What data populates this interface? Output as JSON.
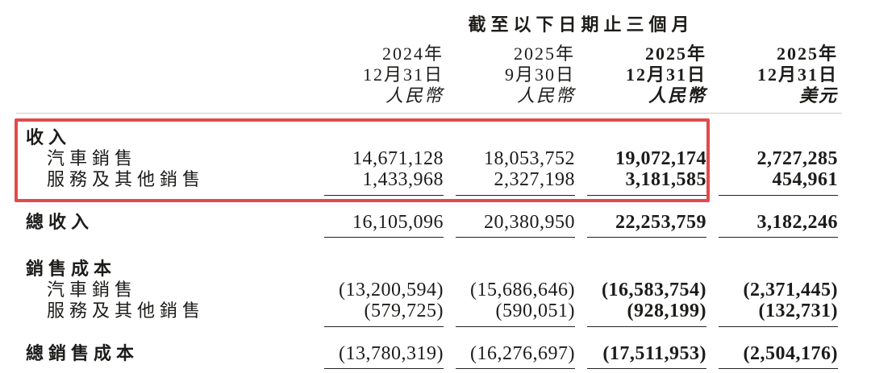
{
  "table": {
    "period_header": "截至以下日期止三個月",
    "columns": [
      {
        "year": "2024年",
        "date": "12月31日",
        "currency": "人民幣"
      },
      {
        "year": "2025年",
        "date": "9月30日",
        "currency": "人民幣"
      },
      {
        "year": "2025年",
        "date": "12月31日",
        "currency": "人民幣"
      },
      {
        "year": "2025年",
        "date": "12月31日",
        "currency": "美元"
      }
    ],
    "sections": [
      {
        "header": "收入",
        "rows": [
          {
            "label": "汽車銷售",
            "values": [
              "14,671,128",
              "18,053,752",
              "19,072,174",
              "2,727,285"
            ]
          },
          {
            "label": "服務及其他銷售",
            "values": [
              "1,433,968",
              "2,327,198",
              "3,181,585",
              "454,961"
            ]
          }
        ],
        "total": {
          "label": "總收入",
          "values": [
            "16,105,096",
            "20,380,950",
            "22,253,759",
            "3,182,246"
          ]
        }
      },
      {
        "header": "銷售成本",
        "rows": [
          {
            "label": "汽車銷售",
            "values": [
              "(13,200,594)",
              "(15,686,646)",
              "(16,583,754)",
              "(2,371,445)"
            ]
          },
          {
            "label": "服務及其他銷售",
            "values": [
              "(579,725)",
              "(590,051)",
              "(928,199)",
              "(132,731)"
            ]
          }
        ],
        "total": {
          "label": "總銷售成本",
          "values": [
            "(13,780,319)",
            "(16,276,697)",
            "(17,511,953)",
            "(2,504,176)"
          ]
        }
      }
    ]
  },
  "annotation": {
    "type": "highlight-box",
    "color": "#e24a4c",
    "highlighted_section": "收入"
  }
}
